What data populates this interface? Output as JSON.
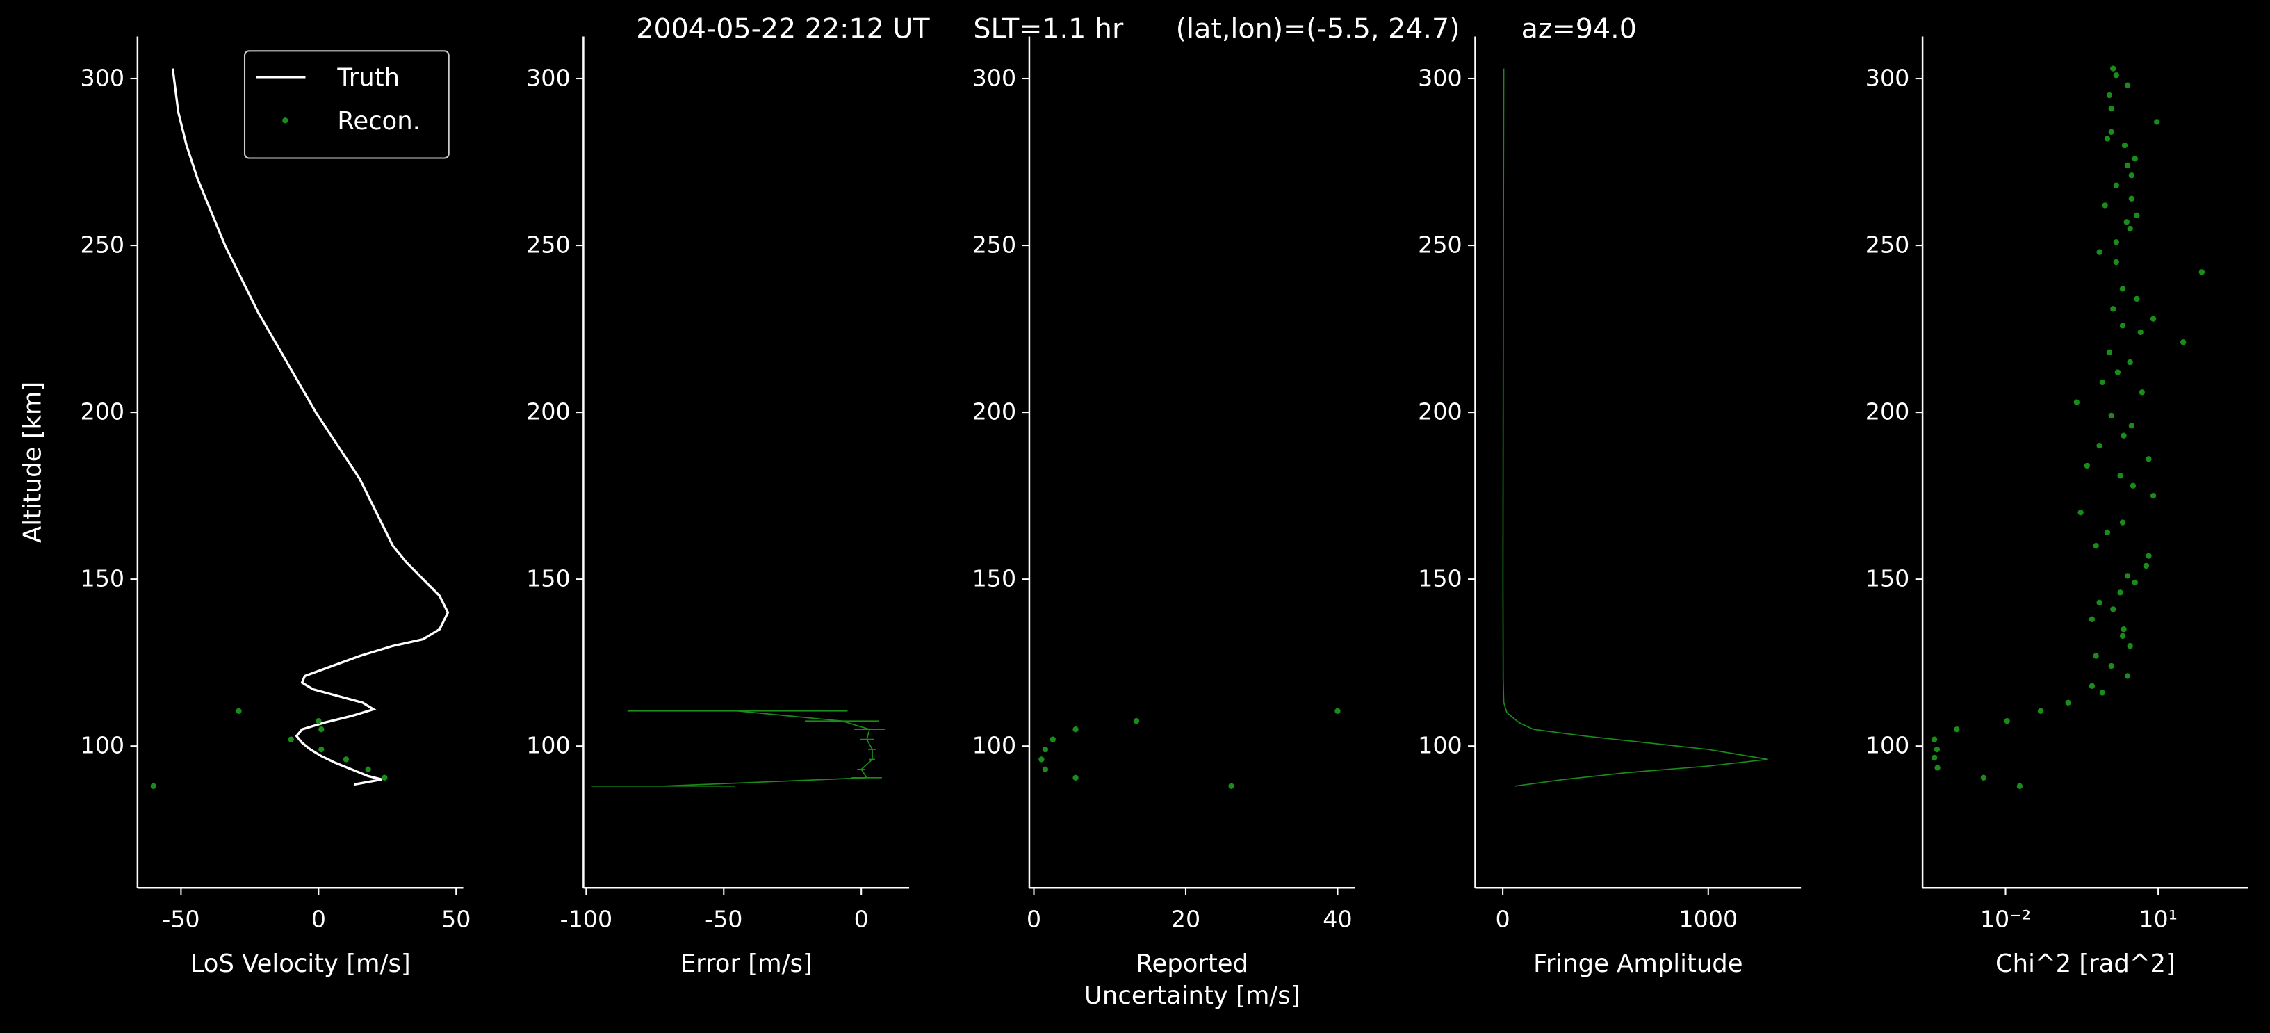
{
  "title": "2004-05-22 22:12 UT     SLT=1.1 hr      (lat,lon)=(-5.5, 24.7)       az=94.0",
  "chart_data": [
    {
      "type": "line",
      "xlabel": "LoS Velocity [m/s]",
      "ylabel": "Altitude [km]",
      "xlim": [
        -65.8,
        52.6
      ],
      "xticks": [
        -50,
        0,
        50
      ],
      "ylim": [
        57.5,
        312.6
      ],
      "yticks": [
        100,
        150,
        200,
        250,
        300
      ],
      "legend": "upper right",
      "series": [
        {
          "name": "Truth",
          "color": "#ffffff",
          "mode": "line",
          "x": [
            -53,
            -51,
            -48,
            -44,
            -39,
            -34,
            -28,
            -22,
            -15,
            -8,
            -1,
            7,
            15,
            21,
            27,
            32,
            38,
            44,
            47,
            44,
            38,
            27,
            15,
            5,
            -5,
            -6,
            -2,
            7,
            16,
            20,
            12,
            2,
            -6,
            -8,
            -6,
            -3,
            1,
            6,
            12,
            18,
            23,
            13
          ],
          "y": [
            303,
            290,
            280,
            270,
            260,
            250,
            240,
            230,
            220,
            210,
            200,
            190,
            180,
            170,
            160,
            155,
            150,
            145,
            140,
            135,
            132,
            130,
            127,
            124,
            121,
            119,
            117,
            115,
            113,
            111,
            109,
            107,
            105,
            103,
            101,
            99,
            97,
            95,
            93,
            91,
            90,
            88.5
          ]
        },
        {
          "name": "Recon.",
          "color": "#1a8c1a",
          "mode": "markers",
          "x": [
            -60,
            -29,
            0,
            1,
            -10,
            1,
            10,
            18,
            24
          ],
          "y": [
            88,
            110.5,
            107.5,
            105,
            102,
            99,
            96,
            93,
            90.5
          ]
        }
      ]
    },
    {
      "type": "errorbar",
      "xlabel": "Error [m/s]",
      "xlim": [
        -101,
        17.4
      ],
      "xticks": [
        -100,
        -50,
        0
      ],
      "ylim": [
        57.5,
        312.6
      ],
      "yticks": [
        100,
        150,
        200,
        250,
        300
      ],
      "series": [
        {
          "color": "#1a8c1a",
          "mode": "line",
          "x": [
            -45,
            -7,
            3,
            2,
            4,
            4,
            0,
            2,
            -72
          ],
          "xerr": [
            40,
            13.5,
            5.5,
            2.5,
            1.5,
            1,
            1.5,
            5.5,
            26
          ],
          "y": [
            110.5,
            107.5,
            105,
            102,
            99,
            96,
            93,
            90.5,
            88
          ]
        }
      ]
    },
    {
      "type": "scatter",
      "xlabel": "Reported\nUncertainty [m/s]",
      "xlim": [
        -0.6,
        42.3
      ],
      "xticks": [
        0,
        20,
        40
      ],
      "ylim": [
        57.5,
        312.6
      ],
      "yticks": [
        100,
        150,
        200,
        250,
        300
      ],
      "series": [
        {
          "color": "#1a8c1a",
          "mode": "markers",
          "x": [
            40,
            13.5,
            5.5,
            2.5,
            1.5,
            1,
            1.5,
            5.5,
            26
          ],
          "y": [
            110.5,
            107.5,
            105,
            102,
            99,
            96,
            93,
            90.5,
            88
          ]
        }
      ]
    },
    {
      "type": "line",
      "xlabel": "Fringe Amplitude",
      "xlim": [
        -134,
        1451
      ],
      "xticks": [
        0,
        1000
      ],
      "ylim": [
        57.5,
        312.6
      ],
      "yticks": [
        100,
        150,
        200,
        250,
        300
      ],
      "series": [
        {
          "color": "#1a8c1a",
          "mode": "line",
          "x": [
            5,
            3,
            2,
            1,
            2,
            5,
            20,
            80,
            150,
            400,
            700,
            1000,
            1290,
            1000,
            600,
            300,
            60
          ],
          "y": [
            303,
            250,
            200,
            150,
            120,
            113,
            110,
            107,
            105,
            103,
            101,
            99,
            96,
            94,
            92,
            90,
            88
          ]
        }
      ]
    },
    {
      "type": "scatter",
      "xlabel": "Chi^2 [rad^2]",
      "xscale": "log",
      "xlim": [
        0.000234,
        589
      ],
      "xticks": [
        {
          "value": 0.01,
          "label": "10⁻²"
        },
        {
          "value": 10,
          "label": "10¹"
        }
      ],
      "ylim": [
        57.5,
        312.6
      ],
      "yticks": [
        100,
        150,
        200,
        250,
        300
      ],
      "series": [
        {
          "color": "#1a8c1a",
          "mode": "markers",
          "x": [
            0.019,
            0.0037,
            0.00046,
            0.0004,
            0.00045,
            0.0004,
            0.0011,
            0.0107,
            0.049,
            0.17,
            0.8,
            0.5,
            2.5,
            1.2,
            0.6,
            2.8,
            2.0,
            2.1,
            0.5,
            1.3,
            0.7,
            1.8,
            3.5,
            2.5,
            5.8,
            6.5,
            0.6,
            1.0,
            2.0,
            0.3,
            8.0,
            3.2,
            1.8,
            0.4,
            6.5,
            0.7,
            2.1,
            3.0,
            1.2,
            0.25,
            4.8,
            0.8,
            1.6,
            2.8,
            1.1,
            31,
            4.5,
            2.0,
            8.0,
            1.3,
            3.8,
            2.0,
            72,
            1.5,
            0.7,
            1.5,
            2.8,
            2.4,
            3.8,
            0.9,
            3.0,
            1.5,
            3.0,
            2.5,
            3.5,
            2.2,
            1.0,
            1.2,
            9.4,
            1.2,
            1.1,
            2.5,
            1.5,
            1.3
          ],
          "y": [
            88,
            90.5,
            93.5,
            96.5,
            99,
            102,
            105,
            107.5,
            110.5,
            113,
            116,
            118,
            121,
            124,
            127,
            130,
            133,
            135,
            138,
            141,
            143,
            146,
            149,
            151,
            154,
            157,
            160,
            164,
            167,
            170,
            175,
            178,
            181,
            184,
            186,
            190,
            193,
            196,
            199,
            203,
            206,
            209,
            212,
            215,
            218,
            221,
            224,
            226,
            228,
            231,
            234,
            237,
            242,
            245,
            248,
            251,
            255,
            257,
            259,
            262,
            264,
            268,
            271,
            274,
            276,
            280,
            282,
            284,
            287,
            291,
            295,
            298,
            301,
            303
          ]
        }
      ]
    }
  ]
}
